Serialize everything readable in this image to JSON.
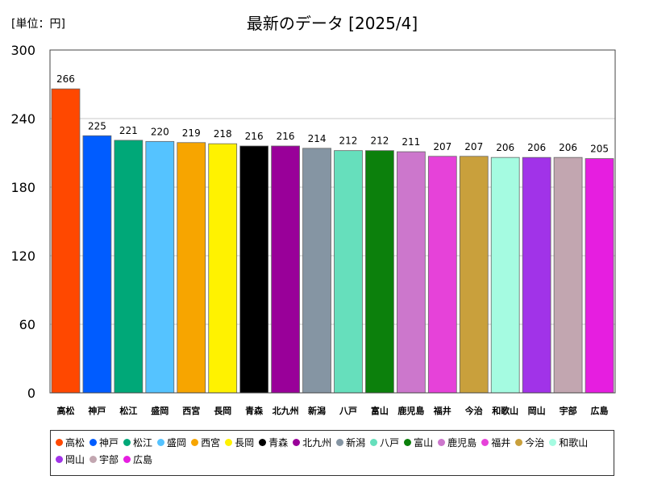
{
  "unit_label": "[単位：円]",
  "chart_data": {
    "type": "bar",
    "title": "最新のデータ [2025/4]",
    "categories": [
      "高松",
      "神戸",
      "松江",
      "盛岡",
      "西宮",
      "長岡",
      "青森",
      "北九州",
      "新潟",
      "八戸",
      "富山",
      "鹿児島",
      "福井",
      "今治",
      "和歌山",
      "岡山",
      "宇部",
      "広島"
    ],
    "values": [
      266,
      225,
      221,
      220,
      219,
      218,
      216,
      216,
      214,
      212,
      212,
      211,
      207,
      207,
      206,
      206,
      206,
      205
    ],
    "colors": [
      "#ff4800",
      "#005cff",
      "#00a878",
      "#55c3ff",
      "#f7a500",
      "#fff200",
      "#000000",
      "#990099",
      "#8595a3",
      "#66dfbc",
      "#0c800c",
      "#cc77cc",
      "#e642d9",
      "#c9a03c",
      "#a5fbe1",
      "#a133e8",
      "#c2a6b0",
      "#e61ee0"
    ],
    "ylim": [
      0,
      300
    ],
    "yticks": [
      0,
      60,
      120,
      180,
      240,
      300
    ],
    "grid": true,
    "legend": "bottom"
  }
}
